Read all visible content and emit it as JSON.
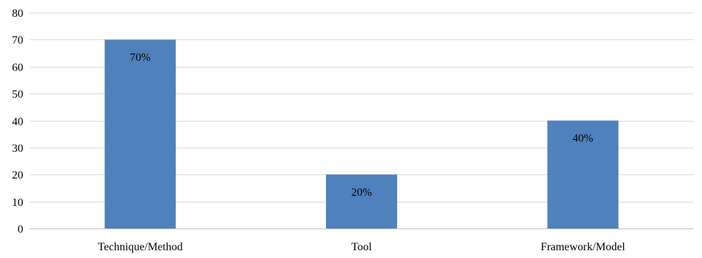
{
  "chart_data": {
    "type": "bar",
    "title": "",
    "xlabel": "",
    "ylabel": "",
    "categories": [
      "Technique/Method",
      "Tool",
      "Framework/Model"
    ],
    "values": [
      70,
      20,
      40
    ],
    "data_labels": [
      "70%",
      "20%",
      "40%"
    ],
    "ylim": [
      0,
      80
    ],
    "yticks": [
      0,
      10,
      20,
      30,
      40,
      50,
      60,
      70,
      80
    ],
    "grid": true,
    "legend": "none",
    "bar_color": "#4f81bd",
    "gridline_color": "#d9d9d9"
  }
}
